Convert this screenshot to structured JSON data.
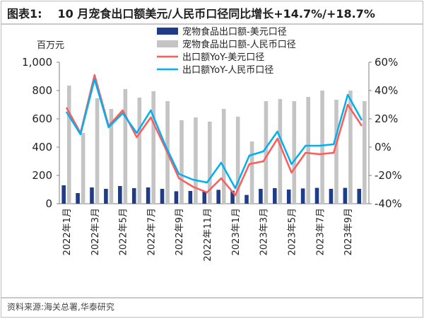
{
  "header": {
    "figure_label": "图表1:",
    "title": "10 月宠食出口额美元/人民币口径同比增长+14.7%/+18.7%"
  },
  "source": "资料来源:海关总署,华泰研究",
  "chart_data": {
    "type": "bar",
    "y_left_unit": "百万元",
    "y_left_ticks": [
      "0",
      "200",
      "400",
      "600",
      "800",
      "1,000"
    ],
    "y_left_lim": [
      0,
      1000
    ],
    "y_right_ticks": [
      "-40%",
      "-20%",
      "0%",
      "20%",
      "40%",
      "60%"
    ],
    "y_right_lim": [
      -40,
      60
    ],
    "x_tick_labels": [
      "2022年1月",
      "2022年3月",
      "2022年5月",
      "2022年7月",
      "2022年9月",
      "2022年11月",
      "2023年1月",
      "2023年3月",
      "2023年5月",
      "2023年7月",
      "2023年9月"
    ],
    "categories": [
      "2022-01",
      "2022-02",
      "2022-03",
      "2022-04",
      "2022-05",
      "2022-06",
      "2022-07",
      "2022-08",
      "2022-09",
      "2022-10",
      "2022-11",
      "2022-12",
      "2023-01",
      "2023-02",
      "2023-03",
      "2023-04",
      "2023-05",
      "2023-06",
      "2023-07",
      "2023-08",
      "2023-09",
      "2023-10"
    ],
    "legend_position": "top-right",
    "series": [
      {
        "name": "宠物食品出口额-美元口径",
        "kind": "bar",
        "axis": "left",
        "color": "#1f3c88",
        "values": [
          130,
          75,
          115,
          105,
          125,
          110,
          115,
          105,
          88,
          90,
          88,
          98,
          92,
          62,
          105,
          110,
          100,
          108,
          112,
          105,
          112,
          105
        ]
      },
      {
        "name": "宠物食品出口额-人民币口径",
        "kind": "bar",
        "axis": "left",
        "color": "#c4c4c4",
        "values": [
          835,
          500,
          745,
          670,
          810,
          750,
          795,
          725,
          590,
          610,
          580,
          670,
          615,
          440,
          725,
          740,
          725,
          755,
          800,
          735,
          800,
          725
        ]
      },
      {
        "name": "出口额YoY-美元口径",
        "kind": "line",
        "axis": "right",
        "color": "#ff5b5b",
        "values": [
          28,
          10,
          51,
          15,
          26,
          7,
          21,
          0,
          -22,
          -28,
          -32,
          -22,
          -34,
          -12,
          -10,
          6,
          -18,
          -4,
          -5,
          -4,
          30,
          15
        ]
      },
      {
        "name": "出口额YoY-人民币口径",
        "kind": "line",
        "axis": "right",
        "color": "#00b0f0",
        "values": [
          25,
          9,
          48,
          14,
          24,
          10,
          26,
          2,
          -19,
          -23,
          -25,
          -11,
          -29,
          -6,
          -3,
          11,
          -12,
          1,
          1,
          2,
          37,
          19
        ]
      }
    ]
  }
}
